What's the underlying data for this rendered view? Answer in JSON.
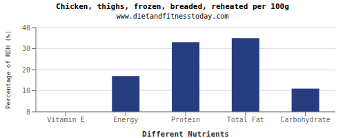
{
  "chart_data": {
    "type": "bar",
    "title": "Chicken, thighs, frozen, breaded, reheated per 100g",
    "subtitle": "www.dietandfitnesstoday.com",
    "xlabel": "Different Nutrients",
    "ylabel": "Percentage of RDH (%)",
    "categories": [
      "Vitamin E",
      "Energy",
      "Protein",
      "Total Fat",
      "Carbohydrate"
    ],
    "values": [
      0,
      17,
      33,
      35,
      11
    ],
    "color": "#273d82",
    "ylim": [
      0,
      40
    ],
    "yticks": [
      0,
      10,
      20,
      30,
      40
    ],
    "grid": true
  }
}
